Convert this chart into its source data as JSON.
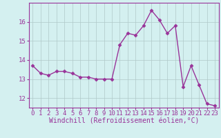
{
  "hours": [
    0,
    1,
    2,
    3,
    4,
    5,
    6,
    7,
    8,
    9,
    10,
    11,
    12,
    13,
    14,
    15,
    16,
    17,
    18,
    19,
    20,
    21,
    22,
    23
  ],
  "windchill": [
    13.7,
    13.3,
    13.2,
    13.4,
    13.4,
    13.3,
    13.1,
    13.1,
    13.0,
    13.0,
    13.0,
    14.8,
    15.4,
    15.3,
    15.8,
    16.6,
    16.1,
    15.4,
    15.8,
    12.6,
    13.7,
    12.7,
    11.7,
    11.6
  ],
  "line_color": "#993399",
  "marker": "D",
  "markersize": 2.5,
  "linewidth": 1.0,
  "background_color": "#d4f0f0",
  "grid_color": "#b0c8c8",
  "xlabel": "Windchill (Refroidissement éolien,°C)",
  "xlabel_fontsize": 7,
  "tick_fontsize": 6.5,
  "ylim": [
    11.5,
    17.0
  ],
  "xlim": [
    -0.5,
    23.5
  ],
  "yticks": [
    12,
    13,
    14,
    15,
    16
  ],
  "xtick_labels": [
    "0",
    "1",
    "2",
    "3",
    "4",
    "5",
    "6",
    "7",
    "8",
    "9",
    "10",
    "11",
    "12",
    "13",
    "14",
    "15",
    "16",
    "17",
    "18",
    "19",
    "20",
    "21",
    "22",
    "23"
  ]
}
